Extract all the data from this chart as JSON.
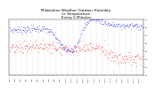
{
  "title": "Milwaukee Weather Outdoor Humidity\nvs Temperature\nEvery 5 Minutes",
  "title_fontsize": 3.0,
  "background_color": "#ffffff",
  "grid_color": "#aaaaaa",
  "blue_color": "#0000dd",
  "red_color": "#dd0000",
  "ylim_left": [
    0,
    100
  ],
  "ylim_right": [
    10,
    80
  ],
  "n_points": 288,
  "right_yticks": [
    10,
    20,
    30,
    40,
    50,
    60,
    70,
    80
  ],
  "right_yticklabels": [
    "10",
    "20",
    "30",
    "40",
    "50",
    "60",
    "70",
    "80"
  ]
}
